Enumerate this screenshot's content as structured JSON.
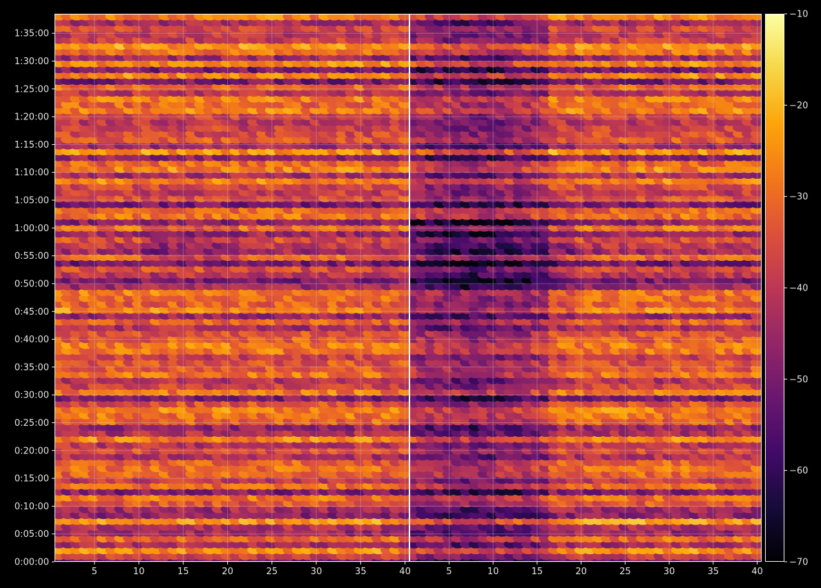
{
  "chart_data": {
    "type": "heatmap",
    "title": "",
    "xlabel": "",
    "ylabel": "",
    "panels": [
      {
        "name": "",
        "x_range": [
          1,
          40
        ],
        "x_ticks": [
          5,
          10,
          15,
          20,
          25,
          30,
          35,
          40
        ],
        "x_tick_labels": [
          "5",
          "10",
          "15",
          "20",
          "25",
          "30",
          "35",
          "40"
        ]
      },
      {
        "name": "",
        "x_range": [
          1,
          40
        ],
        "x_ticks": [
          5,
          10,
          15,
          20,
          25,
          30,
          35,
          40
        ],
        "x_tick_labels": [
          "5",
          "10",
          "15",
          "20",
          "25",
          "30",
          "35",
          "40"
        ]
      }
    ],
    "y_range_seconds": [
      0,
      5910
    ],
    "y_ticks_seconds": [
      0,
      300,
      600,
      900,
      1200,
      1500,
      1800,
      2100,
      2400,
      2700,
      3000,
      3300,
      3600,
      3900,
      4200,
      4500,
      4800,
      5100,
      5400,
      5700
    ],
    "y_tick_labels": [
      "0:00:00",
      "0:05:00",
      "0:10:00",
      "0:15:00",
      "0:20:00",
      "0:25:00",
      "0:30:00",
      "0:35:00",
      "0:40:00",
      "0:45:00",
      "0:50:00",
      "0:55:00",
      "1:00:00",
      "1:05:00",
      "1:10:00",
      "1:15:00",
      "1:20:00",
      "1:25:00",
      "1:30:00",
      "1:35:00"
    ],
    "colorbar": {
      "range": [
        -70,
        -10
      ],
      "ticks": [
        -70,
        -60,
        -50,
        -40,
        -30,
        -20,
        -10
      ],
      "tick_labels": [
        "−70",
        "−60",
        "−50",
        "−40",
        "−30",
        "−20",
        "−10"
      ],
      "colormap": "inferno"
    },
    "hot_rows_seconds": [
      130,
      270,
      445,
      610,
      710,
      840,
      930,
      1000,
      1090,
      1230,
      1330,
      1500,
      1590,
      1650,
      1730,
      1850,
      2010,
      2110,
      2180,
      2270,
      2330,
      2380,
      2490,
      2580,
      2720,
      2770,
      2830,
      2920,
      3140,
      3300,
      3450,
      3600,
      3720,
      3810,
      3900,
      4020,
      4110,
      4240,
      4320,
      4430,
      4570,
      4650,
      4780,
      4870,
      4920,
      4990,
      5100,
      5140,
      5260,
      5380,
      5520,
      5570,
      5780,
      5880
    ],
    "grid": true,
    "legend": "none"
  }
}
